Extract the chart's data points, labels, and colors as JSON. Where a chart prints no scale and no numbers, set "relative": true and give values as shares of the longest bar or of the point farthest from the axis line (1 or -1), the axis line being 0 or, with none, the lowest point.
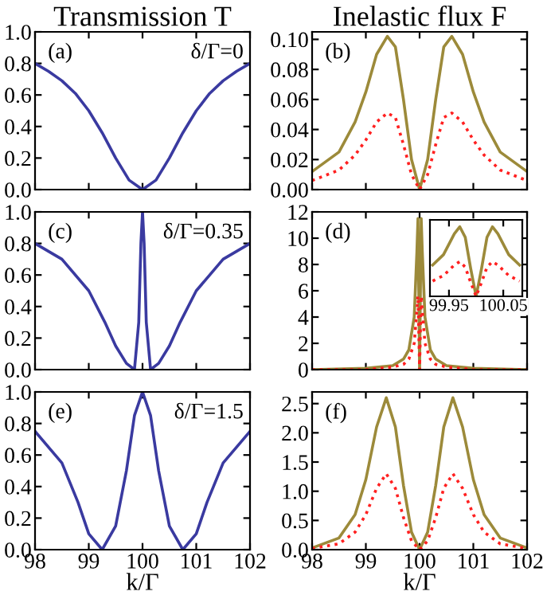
{
  "chart_data": [
    {
      "type": "line",
      "title": "Transmission T",
      "annotations": [
        "(a)",
        "δ/Γ=0"
      ],
      "x": [
        98,
        98.25,
        98.5,
        98.75,
        99,
        99.25,
        99.5,
        99.75,
        100,
        100.25,
        100.5,
        100.75,
        101,
        101.25,
        101.5,
        101.75,
        102
      ],
      "series": [
        {
          "color": "#3a3aa0",
          "values": [
            0.8,
            0.75,
            0.69,
            0.61,
            0.5,
            0.36,
            0.2,
            0.06,
            0,
            0.06,
            0.2,
            0.36,
            0.5,
            0.61,
            0.69,
            0.75,
            0.8
          ]
        }
      ],
      "xlim": [
        98,
        102
      ],
      "xticks": [
        98,
        99,
        100,
        101,
        102
      ],
      "ylim": [
        0,
        1
      ],
      "yticks": [
        {
          "value": 0,
          "label": "0.0"
        },
        0.2,
        0.4,
        0.6,
        0.8,
        {
          "value": 1,
          "label": "1.0"
        }
      ],
      "tick_labels": "y",
      "legend": false
    },
    {
      "type": "line",
      "title": "Inelastic flux F",
      "annotations": [
        "(b)"
      ],
      "x": [
        98,
        98.5,
        98.8,
        99,
        99.2,
        99.4,
        99.55,
        99.7,
        99.85,
        100,
        100.15,
        100.3,
        100.45,
        100.6,
        100.8,
        101,
        101.2,
        101.5,
        102
      ],
      "series": [
        {
          "color": "#9c8a3a",
          "line_style": "solid",
          "values": [
            0.012,
            0.025,
            0.045,
            0.065,
            0.09,
            0.102,
            0.095,
            0.06,
            0.02,
            0,
            0.02,
            0.06,
            0.095,
            0.102,
            0.09,
            0.065,
            0.045,
            0.025,
            0.012
          ]
        },
        {
          "color": "#ff2020",
          "line_style": "dotted",
          "values": [
            0.006,
            0.013,
            0.023,
            0.033,
            0.045,
            0.051,
            0.048,
            0.03,
            0.01,
            0,
            0.01,
            0.03,
            0.048,
            0.051,
            0.045,
            0.033,
            0.023,
            0.013,
            0.006
          ]
        }
      ],
      "xlim": [
        98,
        102
      ],
      "xticks": [
        98,
        99,
        100,
        101,
        102
      ],
      "ylim": [
        0,
        0.105
      ],
      "yticks": [
        {
          "value": 0,
          "label": "0.00"
        },
        0.02,
        0.04,
        0.06,
        0.08,
        {
          "value": 0.1,
          "label": "0.10"
        }
      ],
      "tick_labels": "y",
      "legend": false
    },
    {
      "type": "line",
      "annotations": [
        "(c)",
        "δ/Γ=0.35"
      ],
      "x": [
        98,
        98.5,
        99,
        99.3,
        99.5,
        99.7,
        99.85,
        99.93,
        99.97,
        100,
        100.03,
        100.07,
        100.15,
        100.3,
        100.5,
        100.7,
        101,
        101.5,
        102
      ],
      "series": [
        {
          "color": "#3a3aa0",
          "values": [
            0.8,
            0.7,
            0.5,
            0.3,
            0.15,
            0.04,
            0,
            0.3,
            0.8,
            1.0,
            0.8,
            0.3,
            0,
            0.04,
            0.15,
            0.3,
            0.5,
            0.7,
            0.8
          ]
        }
      ],
      "xlim": [
        98,
        102
      ],
      "xticks": [
        98,
        99,
        100,
        101,
        102
      ],
      "ylim": [
        0,
        1
      ],
      "yticks": [
        {
          "value": 0,
          "label": "0.0"
        },
        0.2,
        0.4,
        0.6,
        0.8,
        {
          "value": 1,
          "label": "1.0"
        }
      ],
      "tick_labels": "y",
      "legend": false
    },
    {
      "type": "line",
      "annotations": [
        "(d)"
      ],
      "x": [
        98,
        99,
        99.5,
        99.7,
        99.8,
        99.9,
        99.95,
        99.97,
        99.985,
        100,
        100.015,
        100.03,
        100.05,
        100.1,
        100.2,
        100.3,
        100.5,
        101,
        102
      ],
      "series": [
        {
          "color": "#9c8a3a",
          "line_style": "solid",
          "values": [
            0.0,
            0.1,
            0.3,
            0.8,
            1.5,
            4,
            9,
            11.5,
            6,
            0,
            6,
            11.5,
            9,
            4,
            1.5,
            0.8,
            0.3,
            0.1,
            0.0
          ]
        },
        {
          "color": "#ff2020",
          "line_style": "dotted",
          "values": [
            0.0,
            0.0,
            0.2,
            0.4,
            0.8,
            2,
            4.5,
            5.6,
            3,
            0,
            3,
            5.6,
            4.5,
            2,
            0.8,
            0.4,
            0.2,
            0.0,
            0.0
          ]
        }
      ],
      "xlim": [
        98,
        102
      ],
      "xticks": [
        98,
        99,
        100,
        101,
        102
      ],
      "ylim": [
        0,
        12
      ],
      "yticks": [
        0,
        2,
        4,
        6,
        8,
        10,
        12
      ],
      "tick_labels": "y",
      "legend": false
    },
    {
      "type": "line",
      "relative": true,
      "x": [
        99.92,
        99.94,
        99.96,
        99.97,
        99.98,
        99.99,
        100,
        100.01,
        100.02,
        100.03,
        100.04,
        100.06,
        100.08
      ],
      "series": [
        {
          "color": "#9c8a3a",
          "line_style": "solid",
          "values": [
            0.45,
            0.6,
            0.9,
            1.0,
            0.85,
            0.4,
            0,
            0.4,
            0.85,
            1.0,
            0.9,
            0.6,
            0.45
          ]
        },
        {
          "color": "#ff2020",
          "line_style": "dotted",
          "values": [
            0.22,
            0.3,
            0.45,
            0.5,
            0.42,
            0.2,
            0,
            0.2,
            0.42,
            0.5,
            0.45,
            0.3,
            0.22
          ]
        }
      ],
      "xlim": [
        99.915,
        100.085
      ],
      "xticks": [
        99.95,
        100.05
      ],
      "legend": false
    },
    {
      "type": "line",
      "xlabel": "k/Γ",
      "annotations": [
        "(e)",
        "δ/Γ=1.5"
      ],
      "x": [
        98,
        98.5,
        98.8,
        99,
        99.25,
        99.5,
        99.7,
        99.85,
        100,
        100.15,
        100.3,
        100.5,
        100.75,
        101,
        101.2,
        101.5,
        102
      ],
      "series": [
        {
          "color": "#3a3aa0",
          "values": [
            0.75,
            0.55,
            0.3,
            0.1,
            0,
            0.15,
            0.5,
            0.85,
            1.0,
            0.85,
            0.5,
            0.15,
            0,
            0.1,
            0.3,
            0.55,
            0.75
          ]
        }
      ],
      "xlim": [
        98,
        102
      ],
      "xticks": [
        98,
        99,
        100,
        101,
        102
      ],
      "ylim": [
        0,
        1
      ],
      "yticks": [
        {
          "value": 0,
          "label": "0.0"
        },
        0.2,
        0.4,
        0.6,
        0.8,
        {
          "value": 1,
          "label": "1.0"
        }
      ],
      "legend": false
    },
    {
      "type": "line",
      "xlabel": "k/Γ",
      "annotations": [
        "(f)"
      ],
      "x": [
        98,
        98.5,
        98.8,
        99,
        99.2,
        99.38,
        99.55,
        99.7,
        99.85,
        100,
        100.15,
        100.3,
        100.45,
        100.62,
        100.8,
        101,
        101.2,
        101.5,
        102
      ],
      "series": [
        {
          "color": "#9c8a3a",
          "line_style": "solid",
          "values": [
            0.03,
            0.2,
            0.6,
            1.2,
            2.1,
            2.6,
            2.1,
            1.1,
            0.3,
            0,
            0.3,
            1.1,
            2.1,
            2.6,
            2.1,
            1.2,
            0.6,
            0.2,
            0.03
          ]
        },
        {
          "color": "#ff2020",
          "line_style": "dotted",
          "values": [
            0.02,
            0.1,
            0.3,
            0.6,
            1.05,
            1.3,
            1.05,
            0.55,
            0.15,
            0,
            0.15,
            0.55,
            1.05,
            1.3,
            1.05,
            0.6,
            0.3,
            0.1,
            0.02
          ]
        }
      ],
      "xlim": [
        98,
        102
      ],
      "xticks": [
        98,
        99,
        100,
        101,
        102
      ],
      "ylim": [
        0,
        2.7
      ],
      "yticks": [
        {
          "value": 0,
          "label": "0.0"
        },
        0.5,
        {
          "value": 1,
          "label": "1.0"
        },
        1.5,
        {
          "value": 2,
          "label": "2.0"
        },
        2.5
      ],
      "legend": false
    }
  ]
}
